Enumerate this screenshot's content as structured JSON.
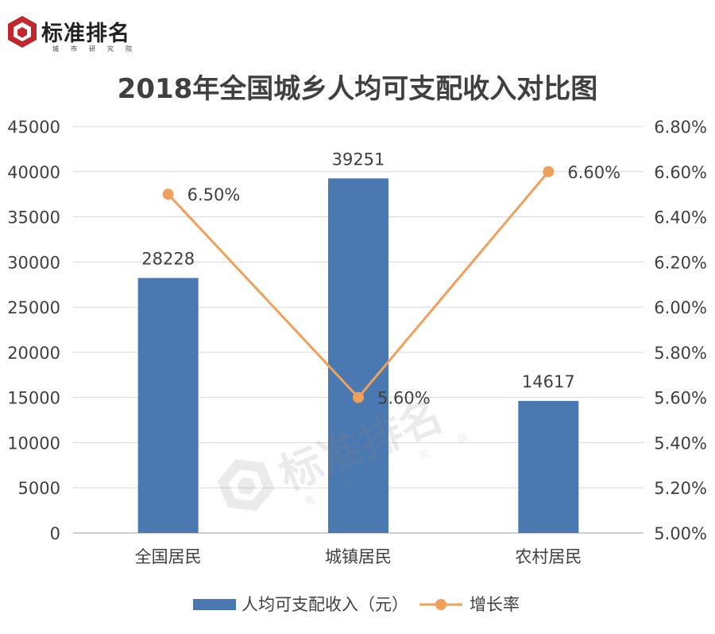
{
  "logo": {
    "name": "标准排名",
    "sub": "城市研究院",
    "brand_color": "#c0282d"
  },
  "watermark": {
    "name": "标准排名",
    "sub": "城市研究院"
  },
  "chart_data": {
    "type": "bar",
    "title": "2018年全国城乡人均可支配收入对比图",
    "categories": [
      "全国居民",
      "城镇居民",
      "农村居民"
    ],
    "series": [
      {
        "name": "人均可支配收入（元）",
        "type": "bar",
        "axis": "left",
        "values": [
          28228,
          39251,
          14617
        ],
        "data_labels": [
          "28228",
          "39251",
          "14617"
        ],
        "color": "#4a78b0"
      },
      {
        "name": "增长率",
        "type": "line",
        "axis": "right",
        "values": [
          6.5,
          5.6,
          6.6
        ],
        "data_labels": [
          "6.50%",
          "5.60%",
          "6.60%"
        ],
        "color": "#f0a05a"
      }
    ],
    "ylim": [
      0,
      45000
    ],
    "yticks": [
      "0",
      "5000",
      "10000",
      "15000",
      "20000",
      "25000",
      "30000",
      "35000",
      "40000",
      "45000"
    ],
    "y2lim": [
      5.0,
      6.8
    ],
    "y2ticks": [
      "5.00%",
      "5.20%",
      "5.40%",
      "5.60%",
      "5.80%",
      "6.00%",
      "6.20%",
      "6.40%",
      "6.60%",
      "6.80%"
    ],
    "grid": true,
    "legend": "bottom",
    "axis_color": "#bfbfbf",
    "grid_color": "#d9d9d9",
    "text_color": "#404040"
  }
}
